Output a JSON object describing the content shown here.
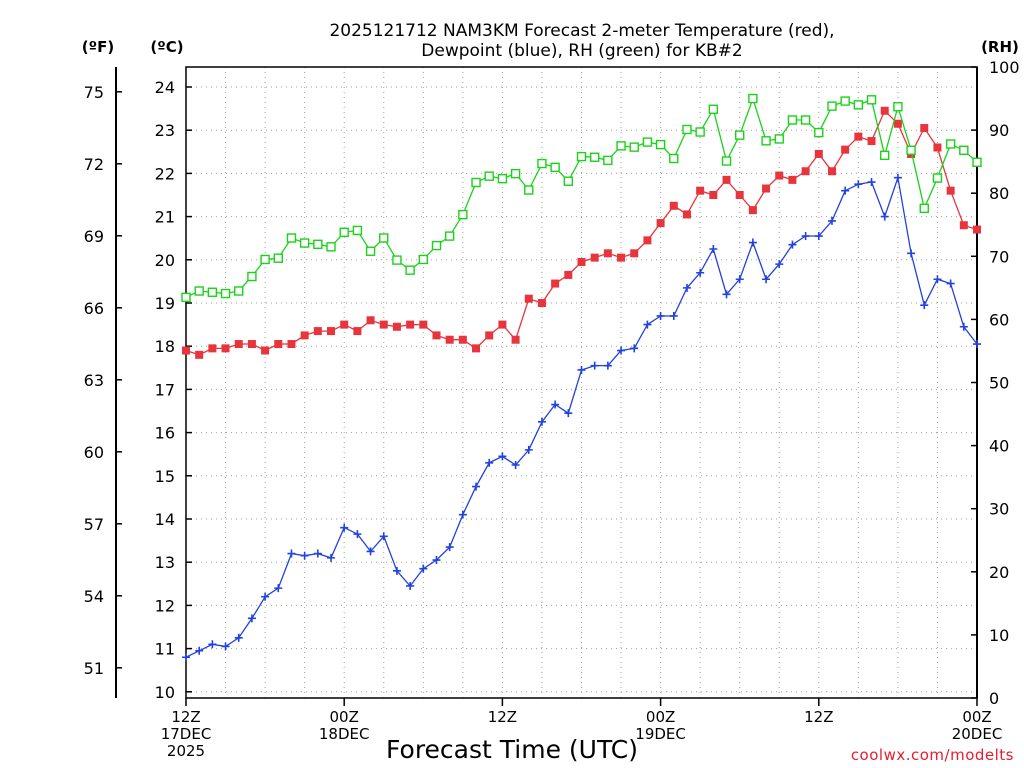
{
  "chart_data": {
    "type": "line",
    "title_line1": "2025121712 NAM3KM Forecast 2-meter Temperature (red),",
    "title_line2": "Dewpoint (blue), RH (green) for KB#2",
    "xlabel": "Forecast Time (UTC)",
    "credit": "coolwx.com/modelts",
    "units": {
      "f": "(ºF)",
      "c": "(ºC)",
      "rh": "(RH)"
    },
    "x_range": [
      0,
      60
    ],
    "x_ticks": [
      {
        "x": 0,
        "l1": "12Z",
        "l2": "17DEC",
        "l3": "2025"
      },
      {
        "x": 12,
        "l1": "00Z",
        "l2": "18DEC",
        "l3": ""
      },
      {
        "x": 24,
        "l1": "12Z",
        "l2": "",
        "l3": ""
      },
      {
        "x": 36,
        "l1": "00Z",
        "l2": "19DEC",
        "l3": ""
      },
      {
        "x": 48,
        "l1": "12Z",
        "l2": "",
        "l3": ""
      },
      {
        "x": 60,
        "l1": "00Z",
        "l2": "20DEC",
        "l3": ""
      }
    ],
    "c_range": [
      9.8,
      24.5
    ],
    "c_ticks": [
      10,
      11,
      12,
      13,
      14,
      15,
      16,
      17,
      18,
      19,
      20,
      21,
      22,
      23,
      24
    ],
    "f_ticks": [
      51,
      54,
      57,
      60,
      63,
      66,
      69,
      72,
      75
    ],
    "rh_range": [
      0,
      100
    ],
    "rh_ticks": [
      0,
      10,
      20,
      30,
      40,
      50,
      60,
      70,
      80,
      90,
      100
    ],
    "grid": true,
    "colors": {
      "temperature": "#e8343c",
      "dewpoint": "#2141e0",
      "rh": "#19d319"
    },
    "series": [
      {
        "key": "temperature",
        "marker": "filled-square",
        "axis": "c",
        "values": [
          17.9,
          17.8,
          17.95,
          17.95,
          18.05,
          18.05,
          17.9,
          18.05,
          18.05,
          18.25,
          18.35,
          18.35,
          18.5,
          18.35,
          18.6,
          18.5,
          18.45,
          18.5,
          18.5,
          18.25,
          18.15,
          18.15,
          17.95,
          18.25,
          18.5,
          18.15,
          19.1,
          19.0,
          19.45,
          19.65,
          19.95,
          20.05,
          20.15,
          20.05,
          20.15,
          20.45,
          20.85,
          21.25,
          21.05,
          21.6,
          21.5,
          21.85,
          21.5,
          21.15,
          21.65,
          21.95,
          21.85,
          22.05,
          22.45,
          22.05,
          22.55,
          22.85,
          22.75,
          23.45,
          23.15,
          22.45,
          23.05,
          22.6,
          21.6,
          20.8,
          20.7
        ]
      },
      {
        "key": "dewpoint",
        "marker": "plus",
        "axis": "c",
        "values": [
          10.8,
          10.95,
          11.1,
          11.05,
          11.25,
          11.7,
          12.2,
          12.4,
          13.2,
          13.15,
          13.2,
          13.1,
          13.8,
          13.65,
          13.25,
          13.6,
          12.8,
          12.45,
          12.85,
          13.05,
          13.35,
          14.1,
          14.75,
          15.3,
          15.45,
          15.25,
          15.6,
          16.25,
          16.65,
          16.45,
          17.45,
          17.55,
          17.55,
          17.9,
          17.95,
          18.5,
          18.7,
          18.7,
          19.35,
          19.7,
          20.25,
          19.2,
          19.55,
          20.4,
          19.55,
          19.9,
          20.35,
          20.55,
          20.55,
          20.9,
          21.6,
          21.75,
          21.8,
          21.0,
          21.9,
          20.15,
          18.95,
          19.55,
          19.45,
          18.45,
          18.05
        ]
      },
      {
        "key": "rh",
        "marker": "open-square",
        "axis": "rh",
        "values": [
          63.5,
          64.5,
          64.3,
          64.1,
          64.5,
          66.8,
          69.5,
          69.7,
          72.9,
          72.1,
          71.9,
          71.5,
          73.8,
          74.1,
          70.8,
          72.9,
          69.4,
          67.8,
          69.5,
          71.7,
          73.2,
          76.6,
          81.7,
          82.7,
          82.3,
          83.1,
          80.5,
          84.7,
          84.1,
          81.9,
          85.8,
          85.7,
          85.2,
          87.5,
          87.3,
          88.1,
          87.7,
          85.5,
          90.1,
          89.7,
          93.3,
          85.1,
          89.2,
          95.0,
          88.3,
          88.6,
          91.6,
          91.6,
          89.6,
          93.8,
          94.6,
          94.0,
          94.8,
          86.0,
          93.7,
          86.8,
          77.6,
          82.4,
          87.8,
          86.8,
          84.9
        ]
      }
    ]
  }
}
